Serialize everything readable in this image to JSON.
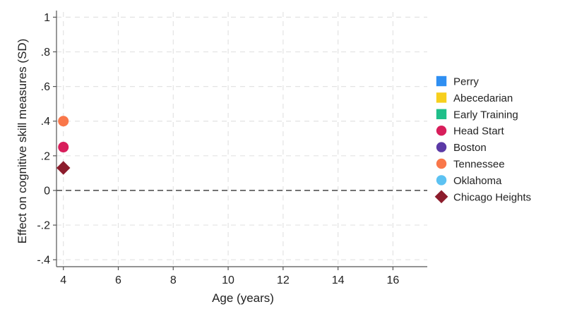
{
  "chart_data": {
    "type": "scatter",
    "title": "",
    "xlabel": "Age (years)",
    "ylabel": "Effect on cognitive skill measures (SD)",
    "xlim": [
      3.75,
      17.25
    ],
    "ylim": [
      -0.44,
      1.03
    ],
    "x_ticks": [
      4,
      6,
      8,
      10,
      12,
      14,
      16
    ],
    "y_ticks": [
      {
        "value": 1,
        "label": "1"
      },
      {
        "value": 0.8,
        "label": ".8"
      },
      {
        "value": 0.6,
        "label": ".6"
      },
      {
        "value": 0.4,
        "label": ".4"
      },
      {
        "value": 0.2,
        "label": ".2"
      },
      {
        "value": 0,
        "label": "0"
      },
      {
        "value": -0.2,
        "label": "-.2"
      },
      {
        "value": -0.4,
        "label": "-.4"
      }
    ],
    "grid": true,
    "reference_line": {
      "y": 0,
      "style": "dashed"
    },
    "legend_position": "right",
    "series": [
      {
        "name": "Perry",
        "marker": "square",
        "color": "#2f8ff2",
        "points": []
      },
      {
        "name": "Abecedarian",
        "marker": "square",
        "color": "#f7cf1d",
        "points": []
      },
      {
        "name": "Early Training",
        "marker": "square",
        "color": "#1fbf8a",
        "points": []
      },
      {
        "name": "Head Start",
        "marker": "circle",
        "color": "#d81e5b",
        "points": [
          {
            "x": 4,
            "y": 0.25
          }
        ]
      },
      {
        "name": "Boston",
        "marker": "circle",
        "color": "#5b3aa6",
        "points": []
      },
      {
        "name": "Tennessee",
        "marker": "circle",
        "color": "#f9774a",
        "points": [
          {
            "x": 4,
            "y": 0.4
          }
        ]
      },
      {
        "name": "Oklahoma",
        "marker": "circle",
        "color": "#5cc2f2",
        "points": []
      },
      {
        "name": "Chicago Heights",
        "marker": "diamond",
        "color": "#8c1c2c",
        "points": [
          {
            "x": 4,
            "y": 0.13
          }
        ]
      }
    ]
  }
}
